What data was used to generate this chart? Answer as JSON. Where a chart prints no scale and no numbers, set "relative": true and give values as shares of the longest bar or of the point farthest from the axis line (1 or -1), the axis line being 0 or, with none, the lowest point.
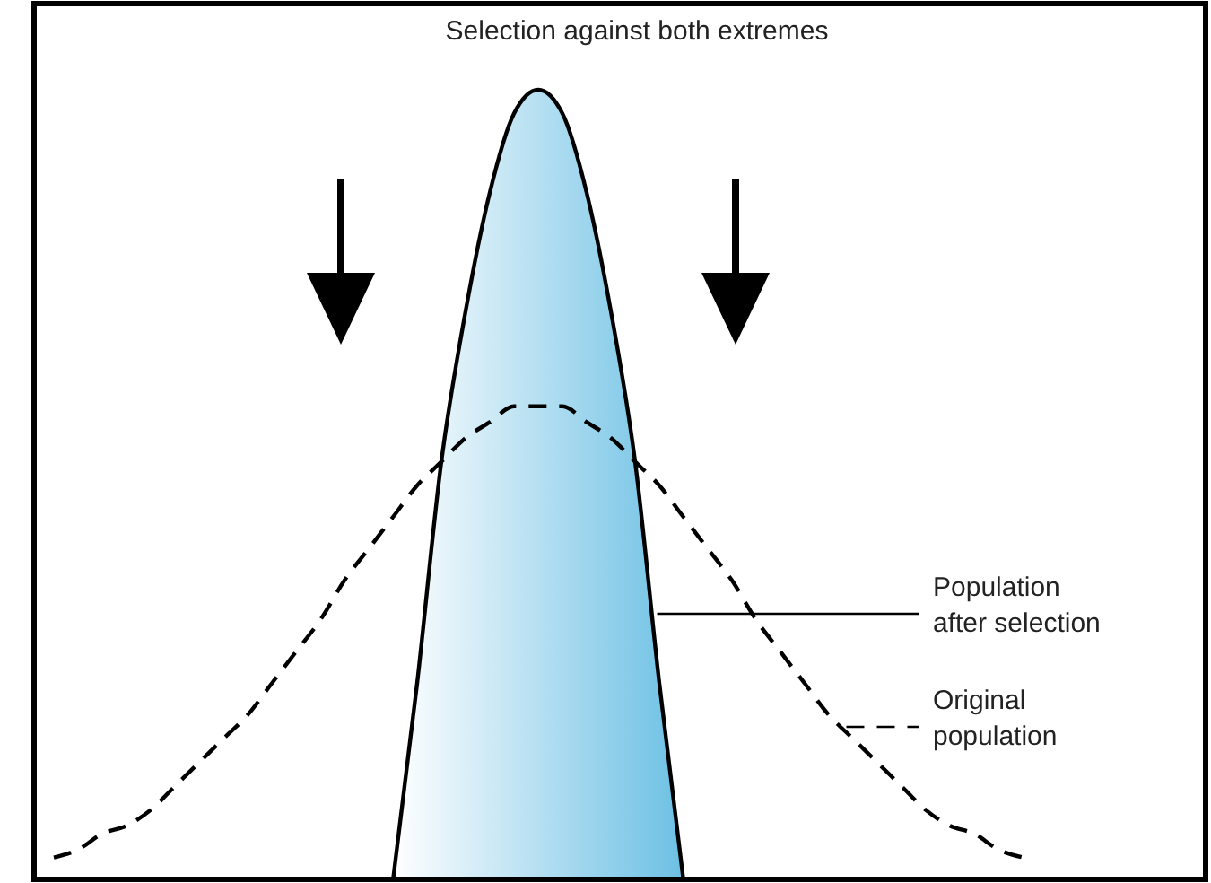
{
  "chart_data": {
    "type": "line",
    "relative": true,
    "title": "Selection against both extremes",
    "categories": [
      null,
      null,
      null,
      null,
      null,
      null,
      null,
      null,
      null,
      null,
      null,
      null,
      null,
      null,
      null,
      null,
      null,
      null,
      null,
      null,
      null,
      null,
      null,
      null,
      null,
      null,
      null,
      null,
      null,
      null,
      null,
      null,
      null,
      null,
      null,
      null,
      null,
      null,
      null,
      null,
      null
    ],
    "series": [
      {
        "name": "Population after selection",
        "type": "area",
        "color": "#6cc0e4",
        "line_style": "solid",
        "values": [
          null,
          null,
          null,
          null,
          null,
          null,
          null,
          null,
          null,
          null,
          null,
          null,
          null,
          null,
          0,
          0.25,
          0.53,
          0.72,
          0.87,
          0.97,
          1,
          0.97,
          0.87,
          0.72,
          0.53,
          0.25,
          0,
          null,
          null,
          null,
          null,
          null,
          null,
          null,
          null,
          null,
          null,
          null,
          null,
          null,
          null
        ]
      },
      {
        "name": "Original population",
        "type": "line",
        "color": "#000000",
        "line_style": "dashed",
        "values": [
          0.03,
          0.04,
          0.06,
          0.07,
          0.09,
          0.12,
          0.15,
          0.18,
          0.21,
          0.25,
          0.29,
          0.33,
          0.38,
          0.42,
          0.46,
          0.5,
          0.53,
          0.56,
          0.58,
          0.6,
          0.6,
          0.6,
          0.58,
          0.56,
          0.53,
          0.5,
          0.46,
          0.42,
          0.38,
          0.33,
          0.29,
          0.25,
          0.21,
          0.18,
          0.15,
          0.12,
          0.09,
          0.07,
          0.06,
          0.04,
          0.03
        ]
      }
    ]
  }
}
